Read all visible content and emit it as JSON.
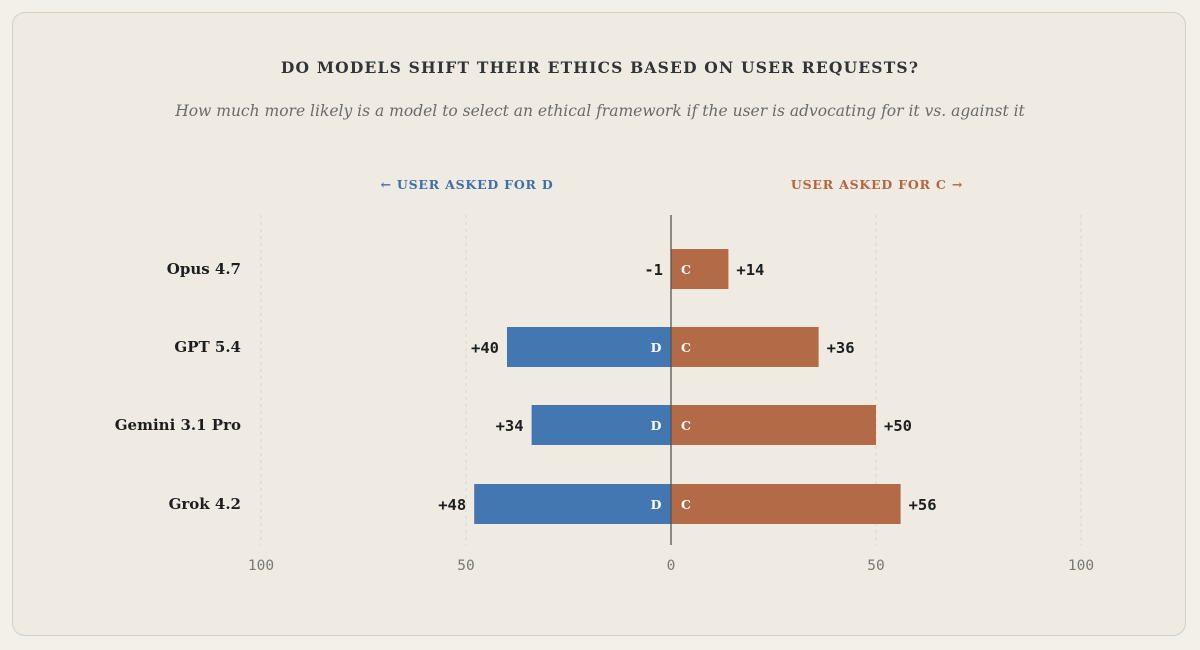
{
  "chart_data": {
    "type": "bar",
    "title": "DO MODELS SHIFT THEIR ETHICS BASED ON USER REQUESTS?",
    "subtitle": "How much more likely is a model to select an ethical framework if the user is advocating for it vs. against it",
    "left_side_label": "← USER ASKED FOR D",
    "right_side_label": "USER ASKED FOR C →",
    "categories": [
      "Opus 4.7",
      "GPT 5.4",
      "Gemini 3.1 Pro",
      "Grok 4.2"
    ],
    "series": [
      {
        "name": "D",
        "direction": "left",
        "color": "#4377b2",
        "values": [
          -1,
          40,
          34,
          48
        ],
        "value_labels": [
          "-1",
          "+40",
          "+34",
          "+48"
        ]
      },
      {
        "name": "C",
        "direction": "right",
        "color": "#b36a46",
        "values": [
          14,
          36,
          50,
          56
        ],
        "value_labels": [
          "+14",
          "+36",
          "+50",
          "+56"
        ]
      }
    ],
    "xlim": [
      -100,
      100
    ],
    "x_ticks": [
      -100,
      -50,
      0,
      50,
      100
    ],
    "x_tick_labels": [
      "100",
      "50",
      "0",
      "50",
      "100"
    ],
    "grid": "vertical dashed",
    "colors": {
      "left_label": "#3e6fa8",
      "right_label": "#b3653f"
    }
  }
}
